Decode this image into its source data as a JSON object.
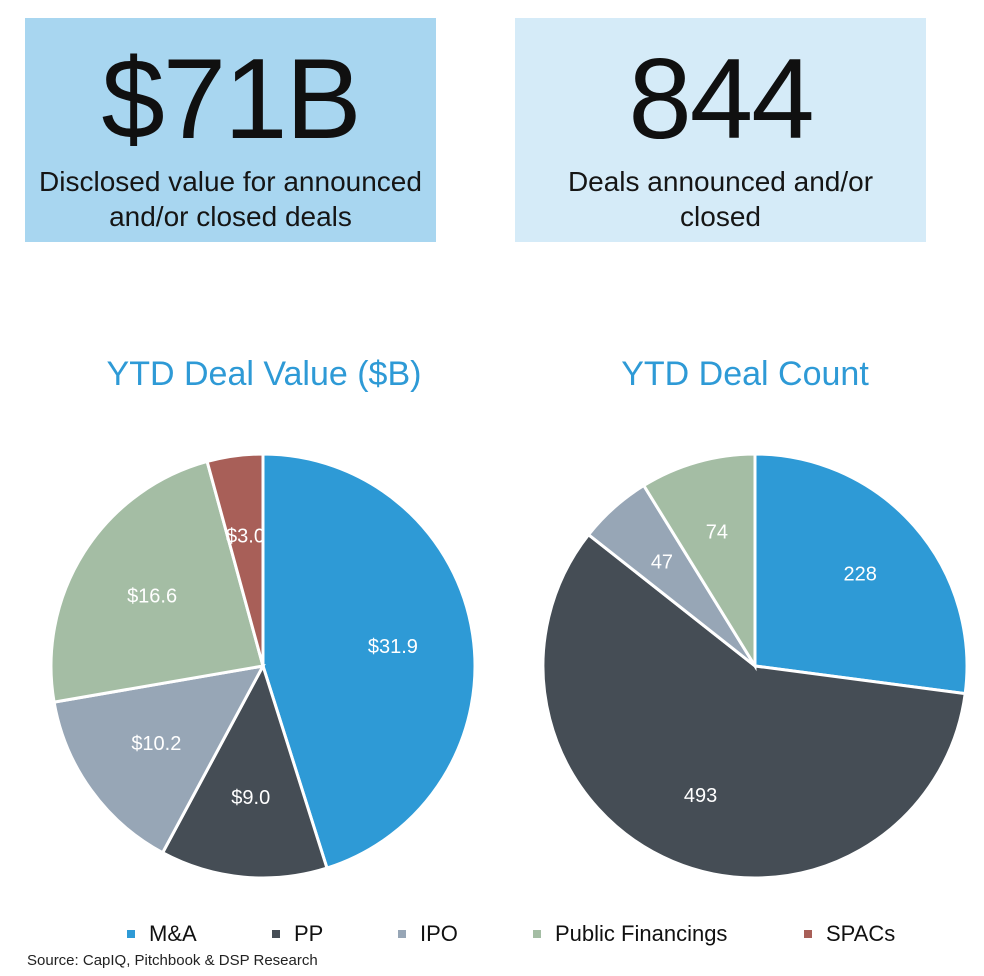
{
  "kpis": [
    {
      "value": "$71B",
      "label": "Disclosed value for announced and/or closed deals"
    },
    {
      "value": "844",
      "label": "Deals announced and/or closed"
    }
  ],
  "colors": {
    "M&A": "#2e9ad6",
    "PP": "#454d55",
    "IPO": "#97a6b6",
    "Public Financings": "#a4bda4",
    "SPACs": "#a85f58",
    "title": "#2e9ad6"
  },
  "chart_data": [
    {
      "type": "pie",
      "title": "YTD Deal Value ($B)",
      "categories": [
        "M&A",
        "PP",
        "IPO",
        "Public Financings",
        "SPACs"
      ],
      "values": [
        31.9,
        9.0,
        10.2,
        16.6,
        3.0
      ],
      "labels": [
        "$31.9",
        "$9.0",
        "$10.2",
        "$16.6",
        "$3.0"
      ]
    },
    {
      "type": "pie",
      "title": "YTD Deal Count",
      "categories": [
        "M&A",
        "PP",
        "IPO",
        "Public Financings"
      ],
      "values": [
        228,
        493,
        47,
        74
      ],
      "labels": [
        "228",
        "493",
        "47",
        "74"
      ]
    }
  ],
  "legend": [
    "M&A",
    "PP",
    "IPO",
    "Public Financings",
    "SPACs"
  ],
  "source": "Source: CapIQ, Pitchbook & DSP Research"
}
